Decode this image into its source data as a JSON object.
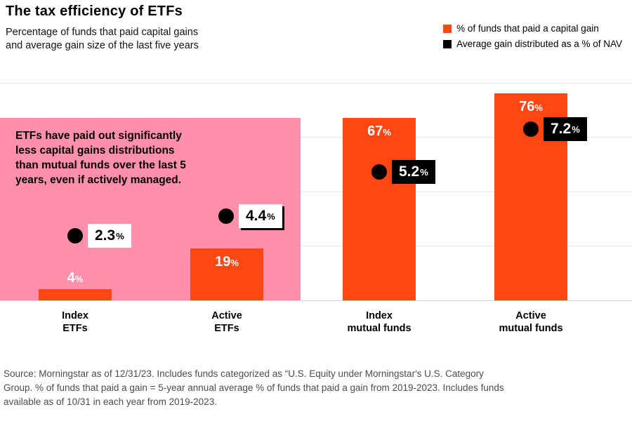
{
  "header": {
    "title": "The tax efficiency of ETFs",
    "subtitle_line1": "Percentage of funds that paid capital gains",
    "subtitle_line2": "and average gain size of the last five years"
  },
  "colors": {
    "bar": "#FF4713",
    "dot": "#000000",
    "highlight": "#FF8FAB"
  },
  "percent_sign": "%",
  "chart_data": {
    "type": "bar",
    "categories": [
      "Index ETFs",
      "Active ETFs",
      "Index mutual funds",
      "Active mutual funds"
    ],
    "series": [
      {
        "name": "% of funds that paid a capital gain",
        "unit": "%",
        "values": [
          4,
          19,
          67,
          76
        ]
      },
      {
        "name": "Average gain distributed as a % of NAV",
        "unit": "% of NAV",
        "values": [
          2.3,
          4.4,
          5.2,
          7.2
        ]
      }
    ],
    "ylim": [
      0,
      80
    ],
    "gridlines_pct": [
      20,
      40,
      60,
      80
    ],
    "grid": true,
    "legend_position": "top-right",
    "highlight_region": "Index ETFs and Active ETFs",
    "annotation": "ETFs have paid out significantly less capital gains distributions than mutual funds over the last 5 years, even if actively managed.",
    "title": "The tax efficiency of ETFs",
    "xlabel": "",
    "ylabel": ""
  },
  "annotation": {
    "line1": "ETFs have paid out significantly",
    "line2": "less capital gains distributions",
    "line3": "than mutual funds over the last 5",
    "line4": "years, even if actively managed."
  },
  "x_labels": [
    {
      "line1": "Index",
      "line2": "ETFs"
    },
    {
      "line1": "Active",
      "line2": "ETFs"
    },
    {
      "line1": "Index",
      "line2": "mutual funds"
    },
    {
      "line1": "Active",
      "line2": "mutual funds"
    }
  ],
  "footer": {
    "line1": "Source: Morningstar as of 12/31/23. Includes funds categorized as “U.S. Equity under Morningstar's U.S. Category",
    "line2": "Group. % of funds that paid a gain = 5-year annual average % of funds that paid a gain from 2019-2023. Includes funds",
    "line3": "available as of 10/31 in each year from 2019-2023."
  }
}
